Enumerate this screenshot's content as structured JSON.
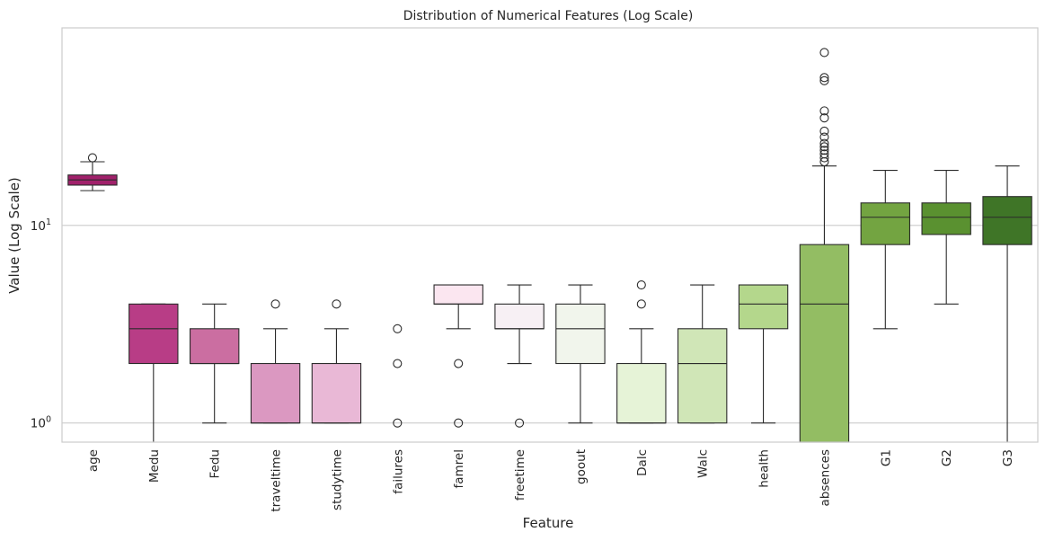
{
  "chart_data": {
    "type": "boxplot",
    "title": "Distribution of Numerical Features (Log Scale)",
    "xlabel": "Feature",
    "ylabel": "Value (Log Scale)",
    "y_scale": "log",
    "ylim": [
      0.8,
      100
    ],
    "y_ticks": [
      {
        "value": 1,
        "base": "10",
        "exp": "0"
      },
      {
        "value": 10,
        "base": "10",
        "exp": "1"
      }
    ],
    "grid": "horizontal",
    "legend": "none",
    "categories": [
      "age",
      "Medu",
      "Fedu",
      "traveltime",
      "studytime",
      "failures",
      "famrel",
      "freetime",
      "goout",
      "Dalc",
      "Walc",
      "health",
      "absences",
      "G1",
      "G2",
      "G3"
    ],
    "boxes": [
      {
        "name": "age",
        "color": "#a1216b",
        "whislo": 15,
        "q1": 16,
        "med": 17,
        "q3": 18,
        "whishi": 21,
        "fliers": [
          22
        ]
      },
      {
        "name": "Medu",
        "color": "#b83d86",
        "whislo": 0,
        "q1": 2,
        "med": 3,
        "q3": 4,
        "whishi": 4,
        "fliers": []
      },
      {
        "name": "Fedu",
        "color": "#cb6ea1",
        "whislo": 1,
        "q1": 2,
        "med": 2,
        "q3": 3,
        "whishi": 4,
        "fliers": []
      },
      {
        "name": "traveltime",
        "color": "#db98c1",
        "whislo": 1,
        "q1": 1,
        "med": 1,
        "q3": 2,
        "whishi": 3,
        "fliers": [
          4
        ]
      },
      {
        "name": "studytime",
        "color": "#e9b8d6",
        "whislo": 1,
        "q1": 1,
        "med": 1,
        "q3": 2,
        "whishi": 3,
        "fliers": [
          4
        ]
      },
      {
        "name": "failures",
        "color": "#f4d8e8",
        "whislo": 0,
        "q1": 0,
        "med": 0,
        "q3": 0,
        "whishi": 0,
        "fliers": [
          1,
          2,
          3
        ]
      },
      {
        "name": "famrel",
        "color": "#fbe6f0",
        "whislo": 3,
        "q1": 4,
        "med": 4,
        "q3": 5,
        "whishi": 5,
        "fliers": [
          1,
          2
        ]
      },
      {
        "name": "freetime",
        "color": "#f7f0f4",
        "whislo": 2,
        "q1": 3,
        "med": 3,
        "q3": 4,
        "whishi": 5,
        "fliers": [
          1
        ]
      },
      {
        "name": "goout",
        "color": "#f1f5ec",
        "whislo": 1,
        "q1": 2,
        "med": 3,
        "q3": 4,
        "whishi": 5,
        "fliers": []
      },
      {
        "name": "Dalc",
        "color": "#e6f3d7",
        "whislo": 1,
        "q1": 1,
        "med": 1,
        "q3": 2,
        "whishi": 3,
        "fliers": [
          4,
          5
        ]
      },
      {
        "name": "Walc",
        "color": "#d0e6b7",
        "whislo": 1,
        "q1": 1,
        "med": 2,
        "q3": 3,
        "whishi": 5,
        "fliers": []
      },
      {
        "name": "health",
        "color": "#b4d78c",
        "whislo": 1,
        "q1": 3,
        "med": 4,
        "q3": 5,
        "whishi": 5,
        "fliers": []
      },
      {
        "name": "absences",
        "color": "#93bd63",
        "whislo": 0,
        "q1": 0,
        "med": 4,
        "q3": 8,
        "whishi": 20,
        "fliers": [
          21,
          22,
          23,
          24,
          25,
          26,
          28,
          30,
          35,
          38,
          54,
          56,
          75
        ]
      },
      {
        "name": "G1",
        "color": "#73a441",
        "whislo": 3,
        "q1": 8,
        "med": 11,
        "q3": 13,
        "whishi": 19,
        "fliers": []
      },
      {
        "name": "G2",
        "color": "#5a9130",
        "whislo": 4,
        "q1": 9,
        "med": 11,
        "q3": 13,
        "whishi": 19,
        "fliers": []
      },
      {
        "name": "G3",
        "color": "#3f7527",
        "whislo": 0,
        "q1": 8,
        "med": 11,
        "q3": 14,
        "whishi": 20,
        "fliers": []
      }
    ]
  }
}
